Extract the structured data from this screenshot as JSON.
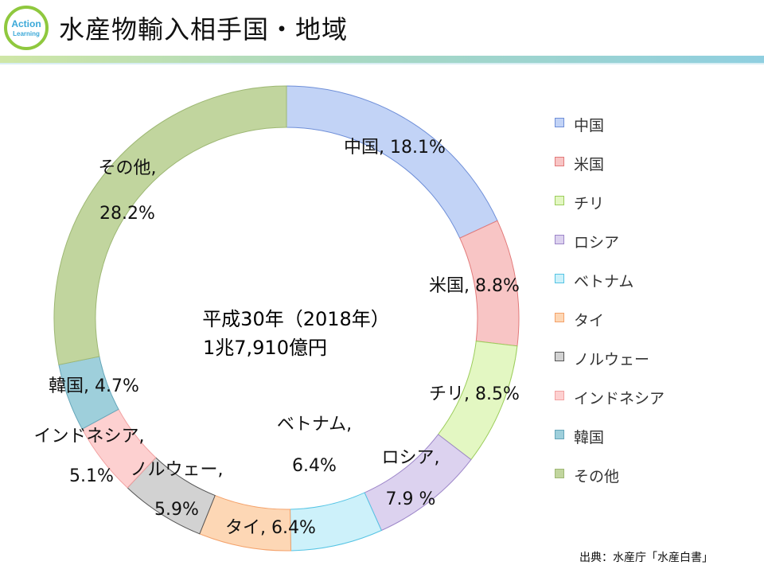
{
  "header": {
    "title": "水産物輸入相手国・地域",
    "logo_line1": "Action",
    "logo_line2": "Learning"
  },
  "source_note": "出典：水産庁「水産白書」",
  "chart_data": {
    "type": "pie",
    "variant": "donut",
    "center_label_line1": "平成30年（2018年）",
    "center_label_line2": "1兆7,910億円",
    "legend_position": "right",
    "categories": [
      "中国",
      "米国",
      "チリ",
      "ロシア",
      "ベトナム",
      "タイ",
      "ノルウェー",
      "インドネシア",
      "韓国",
      "その他"
    ],
    "values": [
      18.1,
      8.8,
      8.5,
      7.9,
      6.4,
      6.4,
      5.9,
      5.1,
      4.7,
      28.2
    ],
    "unit": "%",
    "data_labels": [
      [
        "中国, 18.1%"
      ],
      [
        "米国, 8.8%"
      ],
      [
        "チリ, 8.5%"
      ],
      [
        "ロシア,",
        "7.9 %"
      ],
      [
        "ベトナム,",
        "6.4%"
      ],
      [
        "タイ, 6.4%"
      ],
      [
        "ノルウェー,",
        "5.9%"
      ],
      [
        "インドネシア,",
        "5.1%"
      ],
      [
        "韓国, 4.7%"
      ],
      [
        "その他,",
        "28.2%"
      ]
    ],
    "colors": [
      "#c2d3f6",
      "#f8c5c5",
      "#e3f7c2",
      "#dcd2ef",
      "#cdf1fa",
      "#fdd7b5",
      "#d2d2d2",
      "#fdd0d0",
      "#9ecfdb",
      "#c1d59e"
    ],
    "edge_colors": [
      "#6f8fd8",
      "#e27a7a",
      "#9ccd5c",
      "#9d86c9",
      "#55c4e4",
      "#f4a26b",
      "#555555",
      "#f2a2a2",
      "#65a6ba",
      "#9eb874"
    ]
  }
}
